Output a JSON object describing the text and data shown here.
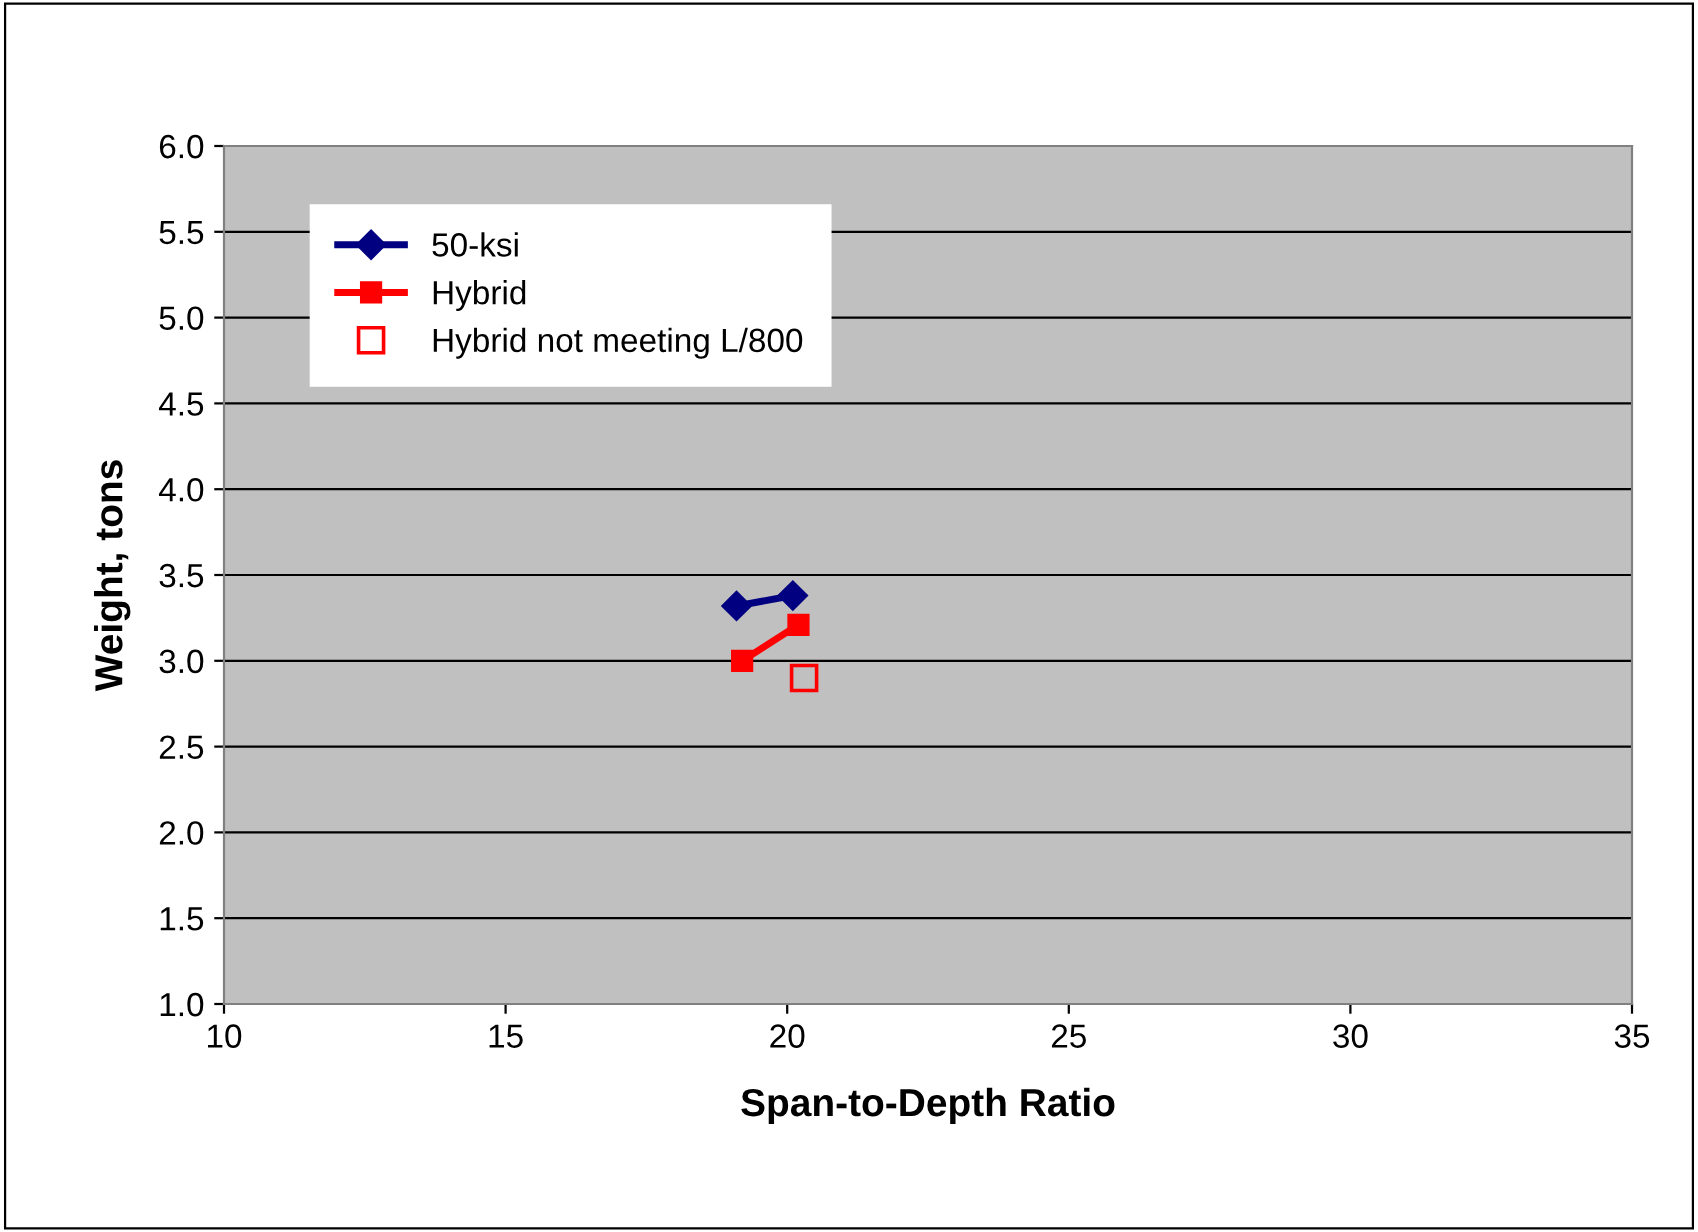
{
  "chart_data": {
    "type": "line",
    "xlabel": "Span-to-Depth Ratio",
    "ylabel": "Weight, tons",
    "xlim": [
      10,
      35
    ],
    "xticks": [
      10,
      15,
      20,
      25,
      30,
      35
    ],
    "ylim": [
      1.0,
      6.0
    ],
    "yticks": [
      {
        "value": 1.0,
        "label": "1.0"
      },
      {
        "value": 1.5,
        "label": "1.5"
      },
      {
        "value": 2.0,
        "label": "2.0"
      },
      {
        "value": 2.5,
        "label": "2.5"
      },
      {
        "value": 3.0,
        "label": "3.0"
      },
      {
        "value": 3.5,
        "label": "3.5"
      },
      {
        "value": 4.0,
        "label": "4.0"
      },
      {
        "value": 4.5,
        "label": "4.5"
      },
      {
        "value": 5.0,
        "label": "5.0"
      },
      {
        "value": 5.5,
        "label": "5.5"
      },
      {
        "value": 6.0,
        "label": "6.0"
      }
    ],
    "grid": "y",
    "legend": "top left",
    "series": [
      {
        "name": "50-ksi",
        "color": "#000080",
        "marker": "diamond",
        "x": [
          19.1,
          20.1
        ],
        "values": [
          3.32,
          3.38
        ]
      },
      {
        "name": "Hybrid",
        "color": "#ff0000",
        "marker": "square",
        "x": [
          19.2,
          20.2
        ],
        "values": [
          3.0,
          3.21
        ]
      },
      {
        "name": "Hybrid not meeting L/800",
        "type": "scatter",
        "color": "#ff0000",
        "marker": "square",
        "x": [
          20.3
        ],
        "values": [
          2.9
        ]
      }
    ]
  }
}
